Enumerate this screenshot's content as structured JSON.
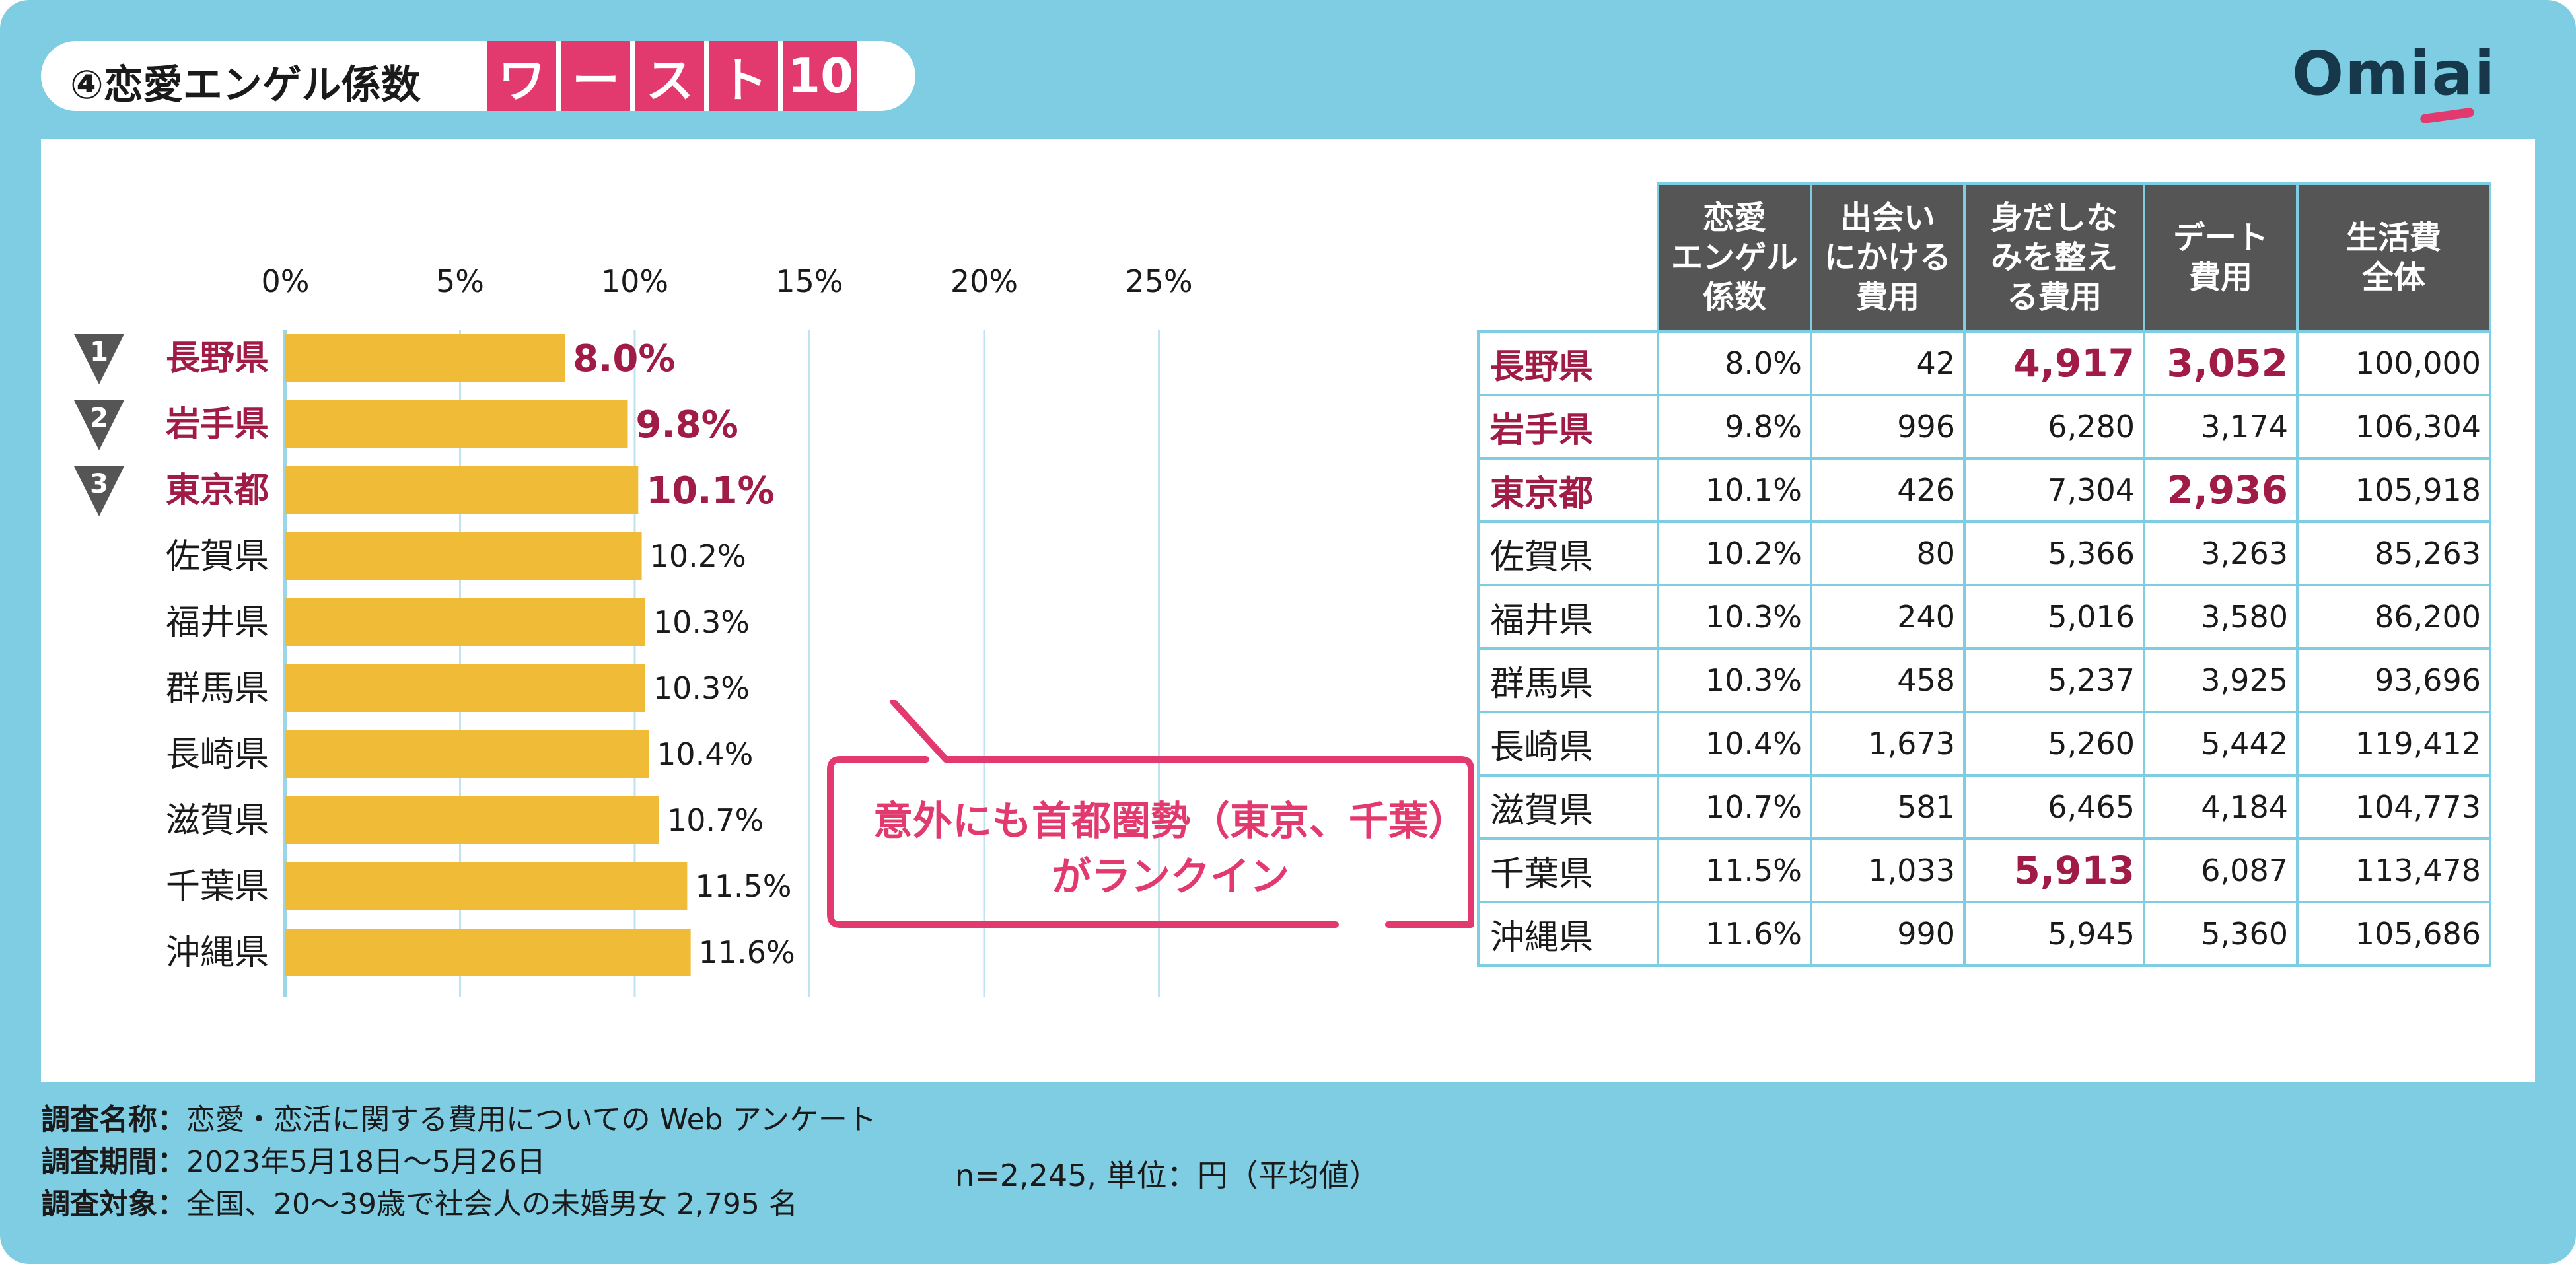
{
  "header": {
    "title": "④恋愛エンゲル係数",
    "worst_chars": [
      "ワ",
      "ー",
      "ス",
      "ト",
      "10"
    ],
    "logo": "Omiai"
  },
  "colors": {
    "background": "#7ecde3",
    "accent": "#e23a6e",
    "bar": "#f0bb36",
    "highlight_text": "#a01c46",
    "table_header": "#555555",
    "rank_badge": "#555555"
  },
  "chart_data": {
    "type": "bar",
    "orientation": "horizontal",
    "title": "恋愛エンゲル係数 ワースト10",
    "xlim": [
      0,
      25
    ],
    "x_ticks": [
      "0%",
      "5%",
      "10%",
      "15%",
      "20%",
      "25%"
    ],
    "x_tick_values": [
      0,
      5,
      10,
      15,
      20,
      25
    ],
    "categories": [
      "長野県",
      "岩手県",
      "東京都",
      "佐賀県",
      "福井県",
      "群馬県",
      "長崎県",
      "滋賀県",
      "千葉県",
      "沖縄県"
    ],
    "values": [
      8.0,
      9.8,
      10.1,
      10.2,
      10.3,
      10.3,
      10.4,
      10.7,
      11.5,
      11.6
    ],
    "value_labels": [
      "8.0%",
      "9.8%",
      "10.1%",
      "10.2%",
      "10.3%",
      "10.3%",
      "10.4%",
      "10.7%",
      "11.5%",
      "11.6%"
    ],
    "ranks": [
      "1",
      "2",
      "3"
    ],
    "grid": true
  },
  "callout": {
    "line1": "意外にも首都圏勢（東京、千葉）",
    "line2": "がランクイン"
  },
  "note": "n=2,245, 単位：円（平均値）",
  "table": {
    "headers": [
      [
        "恋愛",
        "エンゲル",
        "係数"
      ],
      [
        "出会い",
        "にかける",
        "費用"
      ],
      [
        "身だしな",
        "みを整え",
        "る費用"
      ],
      [
        "デート",
        "費用"
      ],
      [
        "生活費",
        "全体"
      ]
    ],
    "rows": [
      {
        "pref": "長野県",
        "cells": [
          "8.0%",
          "42",
          "4,917",
          "3,052",
          "100,000"
        ],
        "hl": [
          false,
          false,
          true,
          true,
          false
        ],
        "top": true
      },
      {
        "pref": "岩手県",
        "cells": [
          "9.8%",
          "996",
          "6,280",
          "3,174",
          "106,304"
        ],
        "hl": [
          false,
          false,
          false,
          false,
          false
        ],
        "top": true
      },
      {
        "pref": "東京都",
        "cells": [
          "10.1%",
          "426",
          "7,304",
          "2,936",
          "105,918"
        ],
        "hl": [
          false,
          false,
          false,
          true,
          false
        ],
        "top": true
      },
      {
        "pref": "佐賀県",
        "cells": [
          "10.2%",
          "80",
          "5,366",
          "3,263",
          "85,263"
        ],
        "hl": [
          false,
          false,
          false,
          false,
          false
        ],
        "top": false
      },
      {
        "pref": "福井県",
        "cells": [
          "10.3%",
          "240",
          "5,016",
          "3,580",
          "86,200"
        ],
        "hl": [
          false,
          false,
          false,
          false,
          false
        ],
        "top": false
      },
      {
        "pref": "群馬県",
        "cells": [
          "10.3%",
          "458",
          "5,237",
          "3,925",
          "93,696"
        ],
        "hl": [
          false,
          false,
          false,
          false,
          false
        ],
        "top": false
      },
      {
        "pref": "長崎県",
        "cells": [
          "10.4%",
          "1,673",
          "5,260",
          "5,442",
          "119,412"
        ],
        "hl": [
          false,
          false,
          false,
          false,
          false
        ],
        "top": false
      },
      {
        "pref": "滋賀県",
        "cells": [
          "10.7%",
          "581",
          "6,465",
          "4,184",
          "104,773"
        ],
        "hl": [
          false,
          false,
          false,
          false,
          false
        ],
        "top": false
      },
      {
        "pref": "千葉県",
        "cells": [
          "11.5%",
          "1,033",
          "5,913",
          "6,087",
          "113,478"
        ],
        "hl": [
          false,
          false,
          true,
          false,
          false
        ],
        "top": false
      },
      {
        "pref": "沖縄県",
        "cells": [
          "11.6%",
          "990",
          "5,945",
          "5,360",
          "105,686"
        ],
        "hl": [
          false,
          false,
          false,
          false,
          false
        ],
        "top": false
      }
    ]
  },
  "footer": {
    "lines": [
      {
        "label": "調査名称：",
        "value": "恋愛・恋活に関する費用についての Web アンケート"
      },
      {
        "label": "調査期間：",
        "value": "2023年5月18日〜5月26日"
      },
      {
        "label": "調査対象：",
        "value": "全国、20〜39歳で社会人の未婚男女 2,795 名"
      }
    ]
  }
}
